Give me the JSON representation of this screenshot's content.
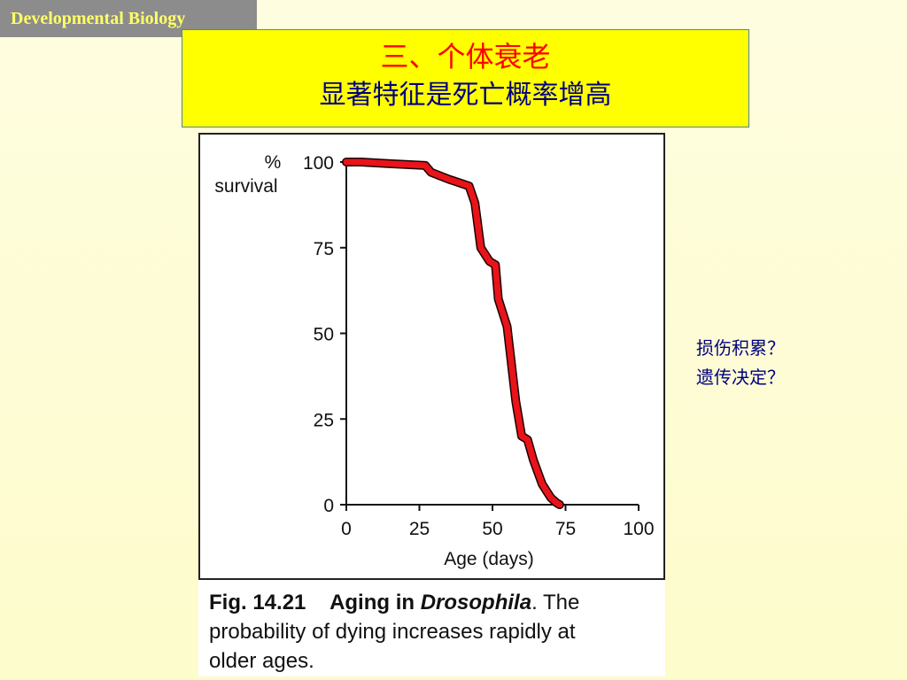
{
  "header_tag": "Developmental Biology",
  "slide": {
    "title": "三、个体衰老",
    "subtitle": "显著特征是死亡概率增高"
  },
  "side_notes": [
    "损伤积累？",
    "遗传决定？"
  ],
  "caption": {
    "fig_num": "Fig. 14.21",
    "bold_text": "Aging in ",
    "bold_italic": "Drosophila",
    "rest_line1": ". The",
    "line2": "probability of dying increases rapidly at",
    "line3": "older ages."
  },
  "chart_data": {
    "type": "line",
    "ylabel_line1": "%",
    "ylabel_line2": "survival",
    "xlabel": "Age (days)",
    "xlim": [
      0,
      100
    ],
    "ylim": [
      0,
      100
    ],
    "xticks": [
      0,
      25,
      50,
      75,
      100
    ],
    "yticks": [
      0,
      25,
      50,
      75,
      100
    ],
    "grid": false,
    "line_color": "#e8141a",
    "series": [
      {
        "x": [
          0,
          5,
          15,
          27,
          29,
          35,
          42,
          44,
          46,
          49,
          51,
          52,
          55,
          58,
          60,
          62,
          64,
          67,
          70,
          72,
          73
        ],
        "y": [
          100,
          100,
          99.5,
          99,
          97,
          95,
          93,
          88,
          75,
          71,
          70,
          60,
          52,
          30,
          20,
          19,
          13,
          6,
          2,
          0.5,
          0
        ]
      }
    ]
  }
}
